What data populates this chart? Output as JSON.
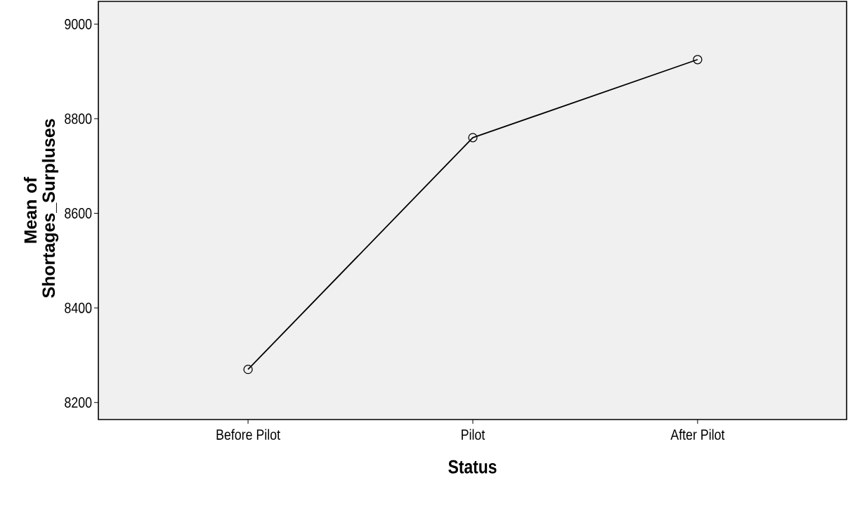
{
  "chart_data": {
    "type": "line",
    "xlabel": "Status",
    "ylabel": "Mean of Shortages_Surpluses",
    "categories": [
      "Before Pilot",
      "Pilot",
      "After Pilot"
    ],
    "series": [
      {
        "color": "#000000",
        "values": [
          8270,
          8760,
          8925
        ]
      }
    ],
    "ylim": [
      8164,
      9048
    ],
    "yticks": [
      8200,
      8400,
      8600,
      8800,
      9000
    ],
    "marker": "circle",
    "line_style": "solid",
    "grid": false
  }
}
